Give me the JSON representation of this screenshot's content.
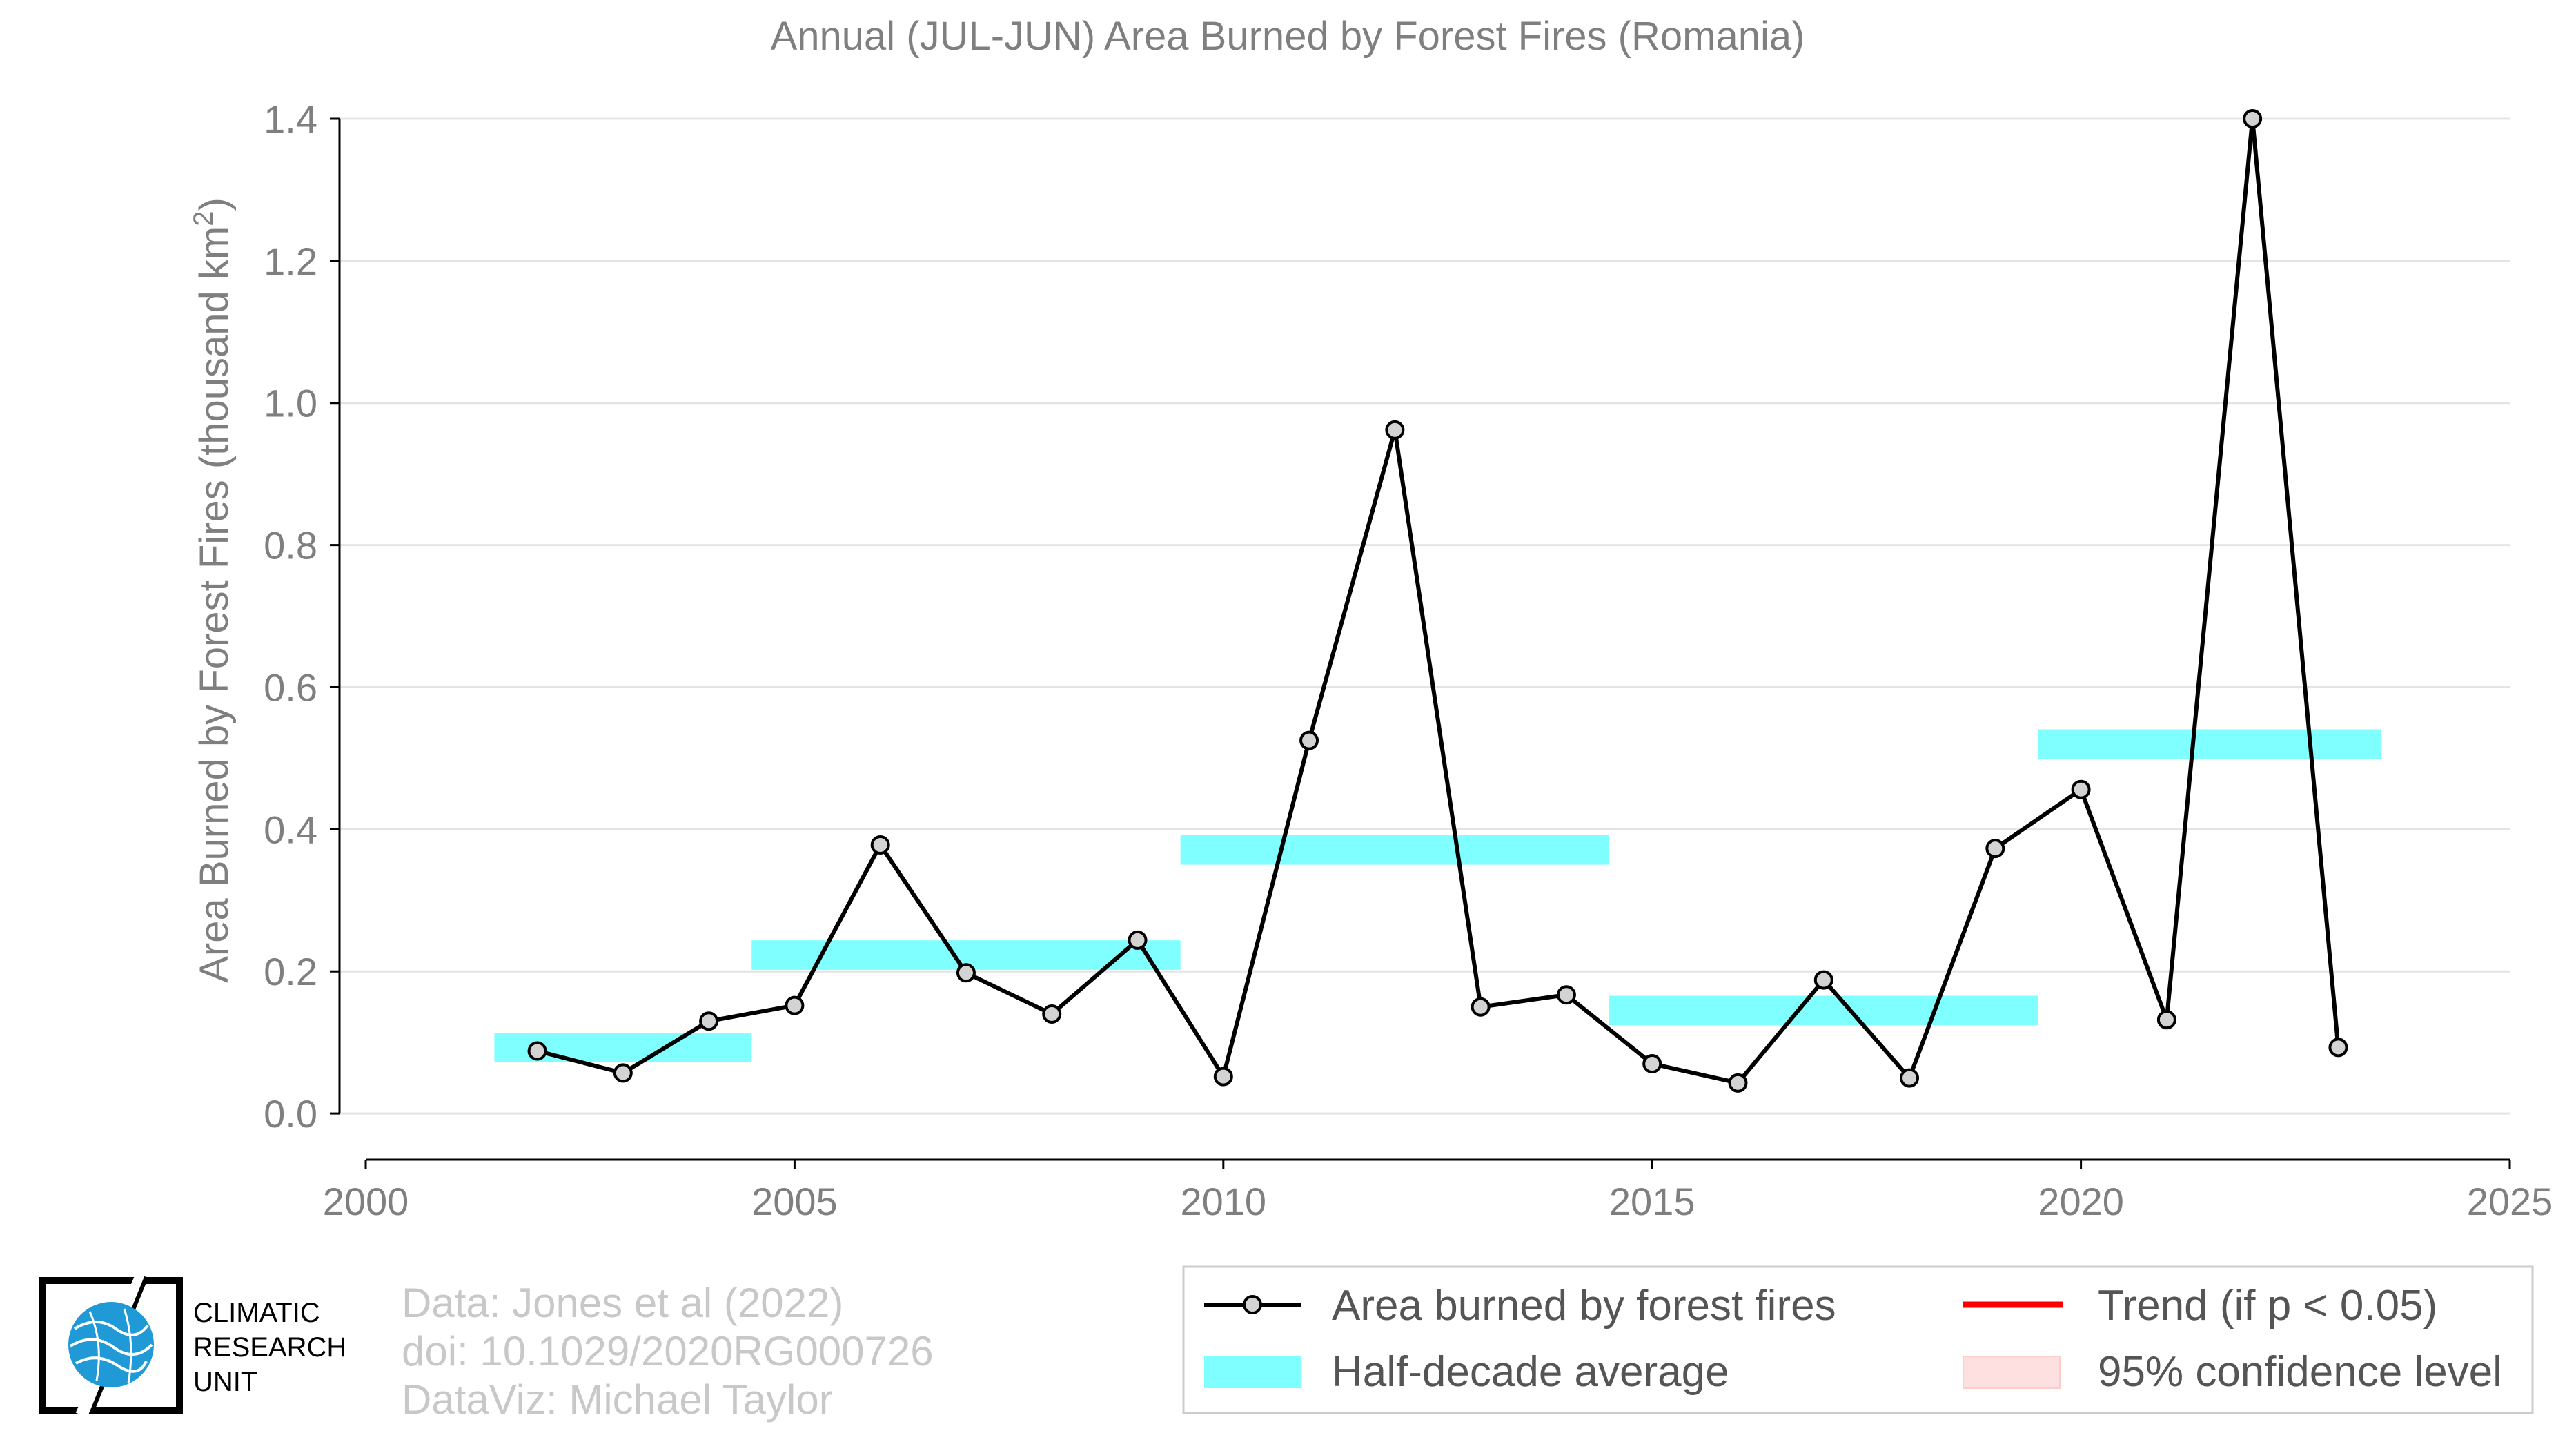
{
  "chart_data": {
    "type": "line",
    "title": "Annual (JUL-JUN) Area Burned by Forest Fires (Romania)",
    "ylabel": "Area Burned by Forest Fires (thousand km²)",
    "ylabel_base": "Area Burned by Forest Fires (thousand km",
    "ylabel_sup": "2",
    "ylabel_end": ")",
    "xlabel": "",
    "xlim": [
      2000,
      2025
    ],
    "ylim": [
      -0.065,
      1.4
    ],
    "xticks": [
      "2000",
      "2005",
      "2010",
      "2015",
      "2020",
      "2025"
    ],
    "yticks": [
      "0.0",
      "0.2",
      "0.4",
      "0.6",
      "0.8",
      "1.0",
      "1.2",
      "1.4"
    ],
    "grid": true,
    "series": [
      {
        "name": "Area burned by forest fires",
        "color": "#000000",
        "x": [
          2002,
          2003,
          2004,
          2005,
          2006,
          2007,
          2008,
          2009,
          2010,
          2011,
          2012,
          2013,
          2014,
          2015,
          2016,
          2017,
          2018,
          2019,
          2020,
          2021,
          2022,
          2023
        ],
        "y": [
          0.088,
          0.057,
          0.13,
          0.152,
          0.378,
          0.198,
          0.14,
          0.244,
          0.052,
          0.525,
          0.962,
          0.15,
          0.167,
          0.07,
          0.043,
          0.188,
          0.05,
          0.373,
          0.456,
          0.132,
          1.4,
          0.093
        ]
      }
    ],
    "half_decade_average": {
      "name": "Half-decade average",
      "color": "#7fffff",
      "segments": [
        {
          "x0": 2001.5,
          "x1": 2004.5,
          "y": 0.093
        },
        {
          "x0": 2004.5,
          "x1": 2009.5,
          "y": 0.223
        },
        {
          "x0": 2009.5,
          "x1": 2014.5,
          "y": 0.371
        },
        {
          "x0": 2014.5,
          "x1": 2019.5,
          "y": 0.145
        },
        {
          "x0": 2019.5,
          "x1": 2023.5,
          "y": 0.52
        }
      ]
    },
    "legend": {
      "placement": "bottom-right",
      "items": [
        {
          "label": "Area burned by forest fires",
          "kind": "line-marker",
          "color": "#000000"
        },
        {
          "label": "Trend (if p < 0.05)",
          "kind": "line",
          "color": "#ff0000"
        },
        {
          "label": "Half-decade average",
          "kind": "patch",
          "color": "#7fffff"
        },
        {
          "label": "95% confidence level",
          "kind": "patch",
          "color": "#ffe0e0"
        }
      ]
    }
  },
  "credits": {
    "line1": "Data: Jones et al (2022)",
    "line2": "doi: 10.1029/2020RG000726",
    "line3": "DataViz: Michael Taylor"
  },
  "logo": {
    "line1": "CLIMATIC",
    "line2": "RESEARCH",
    "line3": "UNIT",
    "globe_color": "#1f9ad6"
  }
}
